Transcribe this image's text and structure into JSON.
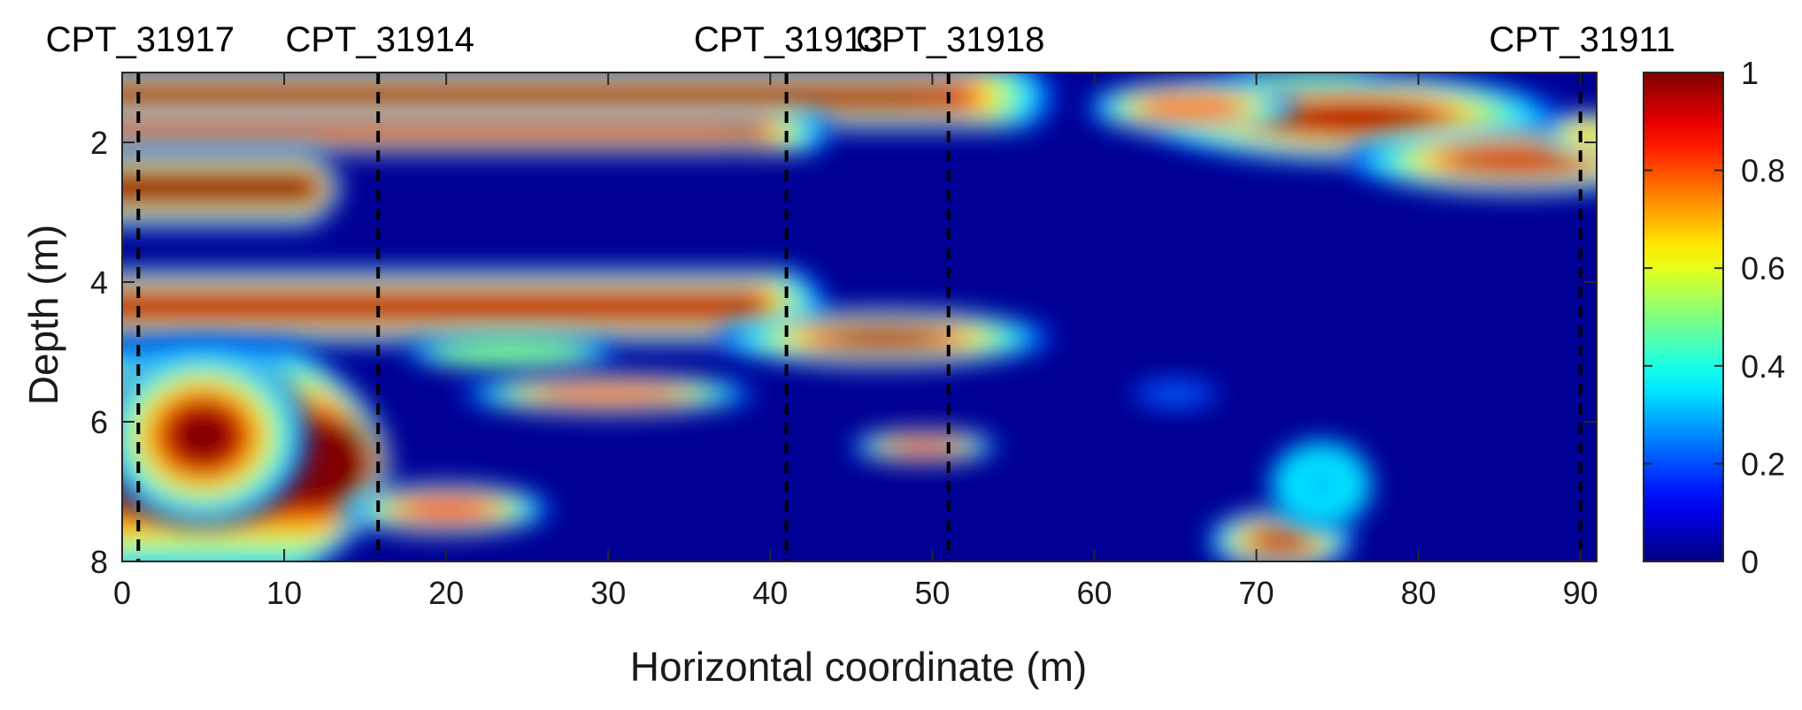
{
  "chart_data": {
    "type": "heatmap",
    "xlabel": "Horizontal coordinate (m)",
    "ylabel": "Depth (m)",
    "xlim": [
      0,
      91
    ],
    "ylim": [
      1,
      8
    ],
    "x_ticks": [
      0,
      10,
      20,
      30,
      40,
      50,
      60,
      70,
      80,
      90
    ],
    "y_ticks": [
      2,
      4,
      6,
      8
    ],
    "colorbar": {
      "range": [
        0,
        1
      ],
      "ticks": [
        0,
        0.2,
        0.4,
        0.6,
        0.8,
        1
      ],
      "tick_labels": [
        "0",
        "0.2",
        "0.4",
        "0.6",
        "0.8",
        "1"
      ],
      "colormap": "jet"
    },
    "boreholes": [
      {
        "name": "CPT_31917",
        "x": 1
      },
      {
        "name": "CPT_31914",
        "x": 15.8
      },
      {
        "name": "CPT_31913",
        "x": 41
      },
      {
        "name": "CPT_31918",
        "x": 51
      },
      {
        "name": "CPT_31911",
        "x": 90
      }
    ],
    "field_features": [
      {
        "kind": "layer",
        "y_center": 1.35,
        "thickness": 0.7,
        "x_end": 58,
        "value": 0.98
      },
      {
        "kind": "layer",
        "y_center": 1.85,
        "thickness": 0.45,
        "x_end": 44,
        "value": 0.92
      },
      {
        "kind": "layer",
        "y_center": 2.65,
        "thickness": 0.85,
        "x_end": 14,
        "value": 1.0
      },
      {
        "kind": "layer",
        "y_center": 4.35,
        "thickness": 0.8,
        "x_end": 44,
        "value": 0.95
      },
      {
        "kind": "layer",
        "y_center": 6.6,
        "thickness": 2.6,
        "x_end": 18,
        "value": 1.0
      },
      {
        "kind": "blob",
        "x": 47,
        "y": 4.8,
        "rx": 8,
        "ry": 0.32,
        "value": 0.98
      },
      {
        "kind": "blob",
        "x": 24,
        "y": 5.0,
        "rx": 5,
        "ry": 0.2,
        "value": 0.5
      },
      {
        "kind": "blob",
        "x": 30,
        "y": 5.6,
        "rx": 7,
        "ry": 0.22,
        "value": 0.75
      },
      {
        "kind": "blob",
        "x": 20,
        "y": 7.25,
        "rx": 5,
        "ry": 0.28,
        "value": 0.85
      },
      {
        "kind": "blob",
        "x": 49.5,
        "y": 6.35,
        "rx": 3.5,
        "ry": 0.18,
        "value": 0.85
      },
      {
        "kind": "blob",
        "x": 71.5,
        "y": 7.7,
        "rx": 3.5,
        "ry": 0.35,
        "value": 0.95
      },
      {
        "kind": "blob",
        "x": 74,
        "y": 6.9,
        "rx": 2.5,
        "ry": 0.5,
        "value": 0.3
      },
      {
        "kind": "blob",
        "x": 76,
        "y": 1.65,
        "rx": 10,
        "ry": 0.5,
        "value": 0.95
      },
      {
        "kind": "blob",
        "x": 86,
        "y": 2.25,
        "rx": 8,
        "ry": 0.38,
        "value": 0.92
      },
      {
        "kind": "blob",
        "x": 90.5,
        "y": 1.9,
        "rx": 2,
        "ry": 0.25,
        "value": 0.65
      },
      {
        "kind": "blob",
        "x": 66,
        "y": 1.5,
        "rx": 5,
        "ry": 0.3,
        "value": 0.75
      },
      {
        "kind": "blob",
        "x": 73,
        "y": 1.05,
        "rx": 4,
        "ry": 0.08,
        "value": 0.5
      },
      {
        "kind": "blob",
        "x": 5,
        "y": 6.2,
        "rx": 5,
        "ry": 1.0,
        "value": 1.0
      },
      {
        "kind": "blob",
        "x": 65,
        "y": 5.6,
        "rx": 2,
        "ry": 0.15,
        "value": 0.25
      }
    ]
  }
}
